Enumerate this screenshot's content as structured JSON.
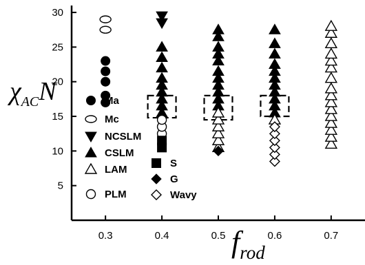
{
  "chart_data": {
    "type": "scatter",
    "title": "",
    "xlabel": "f",
    "xlabel_sub": "rod",
    "ylabel_main": "χ",
    "ylabel_sub": "AC",
    "ylabel_tail": "N",
    "xlim": [
      0.24,
      0.76
    ],
    "ylim": [
      0,
      31
    ],
    "xticks": [
      "0.3",
      "0.4",
      "0.5",
      "0.6",
      "0.7"
    ],
    "yticks": [
      "5",
      "10",
      "15",
      "20",
      "25",
      "30"
    ],
    "grid": false,
    "legend_placement": "lower-left",
    "legend": [
      {
        "label": "Ma",
        "marker": "circle-filled"
      },
      {
        "label": "Mc",
        "marker": "ellipse-open"
      },
      {
        "label": "NCSLM",
        "marker": "triangle-down-filled"
      },
      {
        "label": "CSLM",
        "marker": "triangle-up-filled"
      },
      {
        "label": "LAM",
        "marker": "triangle-up-open"
      },
      {
        "label": "PLM",
        "marker": "circle-open"
      },
      {
        "label": "S",
        "marker": "square-filled"
      },
      {
        "label": "G",
        "marker": "diamond-filled"
      },
      {
        "label": "Wavy",
        "marker": "diamond-open"
      }
    ],
    "series": [
      {
        "name": "Ma",
        "marker": "circle-filled",
        "x": [
          0.3,
          0.3,
          0.3,
          0.3,
          0.3
        ],
        "y": [
          17,
          18,
          20,
          21.5,
          23
        ]
      },
      {
        "name": "Mc",
        "marker": "ellipse-open",
        "x": [
          0.3,
          0.3
        ],
        "y": [
          27.5,
          29
        ]
      },
      {
        "name": "NCSLM",
        "marker": "triangle-down-filled",
        "x": [
          0.4,
          0.4
        ],
        "y": [
          28.5,
          29.5
        ]
      },
      {
        "name": "CSLM",
        "marker": "triangle-up-filled",
        "x": [
          0.4,
          0.4,
          0.4,
          0.4,
          0.4,
          0.4,
          0.4,
          0.4,
          0.4,
          0.5,
          0.5,
          0.5,
          0.5,
          0.5,
          0.5,
          0.5,
          0.5,
          0.5,
          0.5,
          0.5,
          0.5,
          0.6,
          0.6,
          0.6,
          0.6,
          0.6,
          0.6,
          0.6,
          0.6,
          0.6,
          0.6,
          0.6
        ],
        "y": [
          15.5,
          16.5,
          17.5,
          18.5,
          19.5,
          20.5,
          22,
          23.5,
          25,
          15.5,
          16.5,
          17.5,
          18.5,
          19.5,
          20.5,
          21.5,
          23,
          24,
          25,
          26.5,
          27.5,
          15.5,
          16.5,
          17.5,
          18.5,
          19.5,
          20.5,
          21.5,
          22.5,
          24,
          25.5,
          27.5
        ]
      },
      {
        "name": "LAM",
        "marker": "triangle-up-open",
        "x": [
          0.5,
          0.5,
          0.5,
          0.5,
          0.5,
          0.5,
          0.6,
          0.7,
          0.7,
          0.7,
          0.7,
          0.7,
          0.7,
          0.7,
          0.7,
          0.7,
          0.7,
          0.7,
          0.7,
          0.7,
          0.7,
          0.7,
          0.7
        ],
        "y": [
          10.5,
          11.5,
          12.5,
          13.5,
          14.5,
          15.5,
          14.5,
          11,
          12,
          13,
          14,
          15,
          16,
          17,
          18,
          19,
          20.5,
          22,
          23,
          24,
          25.5,
          27,
          28
        ]
      },
      {
        "name": "PLM",
        "marker": "circle-open",
        "x": [
          0.4,
          0.4,
          0.4
        ],
        "y": [
          12.5,
          13.5,
          14.5
        ]
      },
      {
        "name": "S",
        "marker": "square-filled",
        "x": [
          0.4,
          0.4
        ],
        "y": [
          10.5,
          11.5
        ]
      },
      {
        "name": "G",
        "marker": "diamond-filled",
        "x": [
          0.5
        ],
        "y": [
          10
        ]
      },
      {
        "name": "Wavy",
        "marker": "diamond-open",
        "x": [
          0.6,
          0.6,
          0.6,
          0.6,
          0.6,
          0.6
        ],
        "y": [
          8.5,
          9.5,
          10.5,
          11.5,
          12.5,
          13.5
        ]
      }
    ],
    "annotations": [
      {
        "type": "dashed-box",
        "x": [
          0.375,
          0.425
        ],
        "y": [
          14.8,
          18
        ]
      },
      {
        "type": "dashed-box",
        "x": [
          0.475,
          0.525
        ],
        "y": [
          14.5,
          18
        ]
      },
      {
        "type": "dashed-box",
        "x": [
          0.575,
          0.625
        ],
        "y": [
          15,
          18
        ]
      }
    ]
  }
}
